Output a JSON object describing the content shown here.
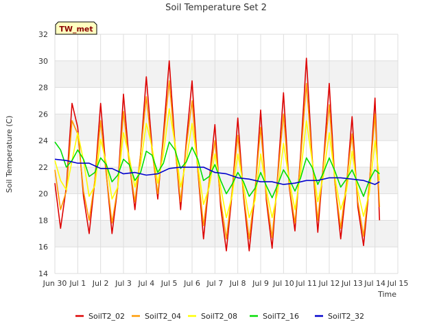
{
  "chart_data": {
    "type": "line",
    "title": "Soil Temperature Set 2",
    "xlabel": "Time",
    "ylabel": "Soil Temperature (C)",
    "badge": "TW_met",
    "xlim": [
      0,
      15
    ],
    "ylim": [
      14,
      32
    ],
    "y_ticks": [
      14,
      16,
      18,
      20,
      22,
      24,
      26,
      28,
      30,
      32
    ],
    "x_ticks": [
      {
        "value": 0,
        "label": "Jun 30"
      },
      {
        "value": 1,
        "label": "Jul 1"
      },
      {
        "value": 2,
        "label": "Jul 2"
      },
      {
        "value": 3,
        "label": "Jul 3"
      },
      {
        "value": 4,
        "label": "Jul 4"
      },
      {
        "value": 5,
        "label": "Jul 5"
      },
      {
        "value": 6,
        "label": "Jul 6"
      },
      {
        "value": 7,
        "label": "Jul 7"
      },
      {
        "value": 8,
        "label": "Jul 8"
      },
      {
        "value": 9,
        "label": "Jul 9"
      },
      {
        "value": 10,
        "label": "Jul 10"
      },
      {
        "value": 11,
        "label": "Jul 11"
      },
      {
        "value": 12,
        "label": "Jul 12"
      },
      {
        "value": 13,
        "label": "Jul 13"
      },
      {
        "value": 14,
        "label": "Jul 14"
      },
      {
        "value": 15,
        "label": "Jul 15"
      }
    ],
    "grid": true,
    "legend_position": "bottom",
    "series": [
      {
        "name": "SoilT2_02",
        "color": "#dd0000",
        "x": [
          0.0,
          0.25,
          0.5,
          0.75,
          1.0,
          1.25,
          1.5,
          1.75,
          2.0,
          2.25,
          2.5,
          2.75,
          3.0,
          3.25,
          3.5,
          3.75,
          4.0,
          4.25,
          4.5,
          4.75,
          5.0,
          5.25,
          5.5,
          5.75,
          6.0,
          6.25,
          6.5,
          6.75,
          7.0,
          7.25,
          7.5,
          7.75,
          8.0,
          8.25,
          8.5,
          8.75,
          9.0,
          9.25,
          9.5,
          9.75,
          10.0,
          10.25,
          10.5,
          10.75,
          11.0,
          11.25,
          11.5,
          11.75,
          12.0,
          12.25,
          12.5,
          12.75,
          13.0,
          13.25,
          13.5,
          13.75,
          14.0,
          14.2
        ],
        "y": [
          20.8,
          17.4,
          20.5,
          26.8,
          25.0,
          19.8,
          17.0,
          21.0,
          26.8,
          21.5,
          17.0,
          20.5,
          27.5,
          22.5,
          18.8,
          23.0,
          28.8,
          23.5,
          19.6,
          24.5,
          30.0,
          23.8,
          18.8,
          24.0,
          28.5,
          21.8,
          16.6,
          21.0,
          25.2,
          19.0,
          15.7,
          20.0,
          25.7,
          19.8,
          15.7,
          20.0,
          26.3,
          19.5,
          15.9,
          21.5,
          27.6,
          20.5,
          17.2,
          23.0,
          30.2,
          22.8,
          17.1,
          22.5,
          28.3,
          20.8,
          16.6,
          20.5,
          25.8,
          19.0,
          16.1,
          20.5,
          27.2,
          18.0
        ]
      },
      {
        "name": "SoilT2_04",
        "color": "#ff9900",
        "x": [
          0.0,
          0.25,
          0.5,
          0.75,
          1.0,
          1.25,
          1.5,
          1.75,
          2.0,
          2.25,
          2.5,
          2.75,
          3.0,
          3.25,
          3.5,
          3.75,
          4.0,
          4.25,
          4.5,
          4.75,
          5.0,
          5.25,
          5.5,
          5.75,
          6.0,
          6.25,
          6.5,
          6.75,
          7.0,
          7.25,
          7.5,
          7.75,
          8.0,
          8.25,
          8.5,
          8.75,
          9.0,
          9.25,
          9.5,
          9.75,
          10.0,
          10.25,
          10.5,
          10.75,
          11.0,
          11.25,
          11.5,
          11.75,
          12.0,
          12.25,
          12.5,
          12.75,
          13.0,
          13.25,
          13.5,
          13.75,
          14.0,
          14.2
        ],
        "y": [
          21.8,
          18.8,
          20.2,
          25.5,
          24.5,
          20.2,
          18.0,
          21.0,
          25.5,
          21.4,
          17.8,
          20.5,
          26.2,
          22.3,
          19.4,
          23.0,
          27.3,
          23.2,
          20.0,
          24.0,
          28.5,
          23.6,
          19.4,
          23.6,
          27.0,
          21.8,
          17.6,
          21.0,
          24.0,
          19.5,
          16.6,
          20.2,
          24.4,
          20.0,
          16.6,
          20.2,
          25.0,
          19.8,
          16.7,
          21.3,
          26.0,
          20.6,
          17.8,
          22.6,
          28.3,
          22.6,
          18.0,
          22.3,
          26.7,
          20.8,
          17.4,
          20.8,
          24.5,
          19.4,
          16.8,
          20.7,
          26.0,
          19.0
        ]
      },
      {
        "name": "SoilT2_08",
        "color": "#ffff00",
        "x": [
          0.0,
          0.25,
          0.5,
          0.75,
          1.0,
          1.25,
          1.5,
          1.75,
          2.0,
          2.25,
          2.5,
          2.75,
          3.0,
          3.25,
          3.5,
          3.75,
          4.0,
          4.25,
          4.5,
          4.75,
          5.0,
          5.25,
          5.5,
          5.75,
          6.0,
          6.25,
          6.5,
          6.75,
          7.0,
          7.25,
          7.5,
          7.75,
          8.0,
          8.25,
          8.5,
          8.75,
          9.0,
          9.25,
          9.5,
          9.75,
          10.0,
          10.25,
          10.5,
          10.75,
          11.0,
          11.25,
          11.5,
          11.75,
          12.0,
          12.25,
          12.5,
          12.75,
          13.0,
          13.25,
          13.5,
          13.75,
          14.0,
          14.2
        ],
        "y": [
          22.5,
          21.0,
          20.3,
          22.5,
          24.6,
          22.5,
          19.8,
          20.6,
          24.1,
          22.3,
          19.6,
          20.5,
          24.6,
          22.8,
          20.5,
          22.2,
          25.3,
          23.5,
          20.8,
          23.0,
          26.4,
          23.8,
          20.5,
          22.5,
          25.3,
          22.2,
          19.2,
          20.5,
          23.0,
          20.5,
          18.2,
          19.8,
          23.0,
          20.6,
          18.2,
          19.5,
          23.0,
          20.3,
          18.2,
          20.2,
          23.8,
          21.0,
          18.8,
          21.5,
          25.5,
          22.5,
          19.4,
          21.4,
          24.6,
          21.2,
          18.8,
          20.2,
          23.2,
          20.2,
          18.3,
          20.0,
          24.0,
          21.0
        ]
      },
      {
        "name": "SoilT2_16",
        "color": "#00dd00",
        "x": [
          0.0,
          0.25,
          0.5,
          0.75,
          1.0,
          1.25,
          1.5,
          1.75,
          2.0,
          2.25,
          2.5,
          2.75,
          3.0,
          3.25,
          3.5,
          3.75,
          4.0,
          4.25,
          4.5,
          4.75,
          5.0,
          5.25,
          5.5,
          5.75,
          6.0,
          6.25,
          6.5,
          6.75,
          7.0,
          7.25,
          7.5,
          7.75,
          8.0,
          8.25,
          8.5,
          8.75,
          9.0,
          9.25,
          9.5,
          9.75,
          10.0,
          10.25,
          10.5,
          10.75,
          11.0,
          11.25,
          11.5,
          11.75,
          12.0,
          12.25,
          12.5,
          12.75,
          13.0,
          13.25,
          13.5,
          13.75,
          14.0,
          14.2
        ],
        "y": [
          23.9,
          23.3,
          22.0,
          22.5,
          23.3,
          22.6,
          21.3,
          21.6,
          22.7,
          22.2,
          20.9,
          21.4,
          22.6,
          22.2,
          21.0,
          21.6,
          23.2,
          22.9,
          21.6,
          22.3,
          23.9,
          23.3,
          21.9,
          22.4,
          23.5,
          22.6,
          21.0,
          21.3,
          22.2,
          21.0,
          20.0,
          20.7,
          21.6,
          20.9,
          19.8,
          20.4,
          21.6,
          20.6,
          19.7,
          20.7,
          21.8,
          21.1,
          20.2,
          21.2,
          22.7,
          22.0,
          20.7,
          21.6,
          22.7,
          21.7,
          20.5,
          21.1,
          21.8,
          20.8,
          19.8,
          21.0,
          21.8,
          21.5
        ]
      },
      {
        "name": "SoilT2_32",
        "color": "#0000cc",
        "x": [
          0.0,
          0.5,
          1.0,
          1.5,
          2.0,
          2.5,
          3.0,
          3.5,
          4.0,
          4.5,
          5.0,
          5.5,
          6.0,
          6.5,
          7.0,
          7.5,
          8.0,
          8.5,
          9.0,
          9.5,
          10.0,
          10.5,
          11.0,
          11.5,
          12.0,
          12.5,
          13.0,
          13.5,
          14.0,
          14.2
        ],
        "y": [
          22.6,
          22.5,
          22.3,
          22.3,
          21.9,
          21.9,
          21.5,
          21.6,
          21.4,
          21.5,
          21.9,
          22.0,
          22.0,
          22.0,
          21.6,
          21.5,
          21.2,
          21.1,
          20.9,
          20.9,
          20.7,
          20.8,
          21.0,
          21.0,
          21.2,
          21.2,
          21.1,
          21.0,
          20.7,
          20.9
        ]
      }
    ]
  }
}
